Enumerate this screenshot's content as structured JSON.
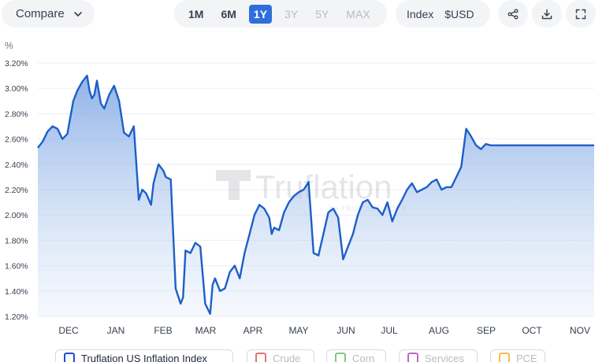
{
  "toolbar": {
    "compare_label": "Compare",
    "ranges": [
      {
        "label": "1M",
        "state": "normal"
      },
      {
        "label": "6M",
        "state": "normal"
      },
      {
        "label": "1Y",
        "state": "active"
      },
      {
        "label": "3Y",
        "state": "disabled"
      },
      {
        "label": "5Y",
        "state": "disabled"
      },
      {
        "label": "MAX",
        "state": "disabled"
      }
    ],
    "index_label": "Index",
    "currency_label": "$USD",
    "icons": [
      "share-icon",
      "download-icon",
      "fullscreen-icon"
    ]
  },
  "watermark": {
    "brand": "Truflation",
    "tagline": "by TRUF.NETWORK"
  },
  "legend": [
    {
      "label": "Truflation US Inflation Index",
      "color": "#1d4ed8",
      "checked": true
    },
    {
      "label": "Crude",
      "color": "#e57373",
      "checked": false
    },
    {
      "label": "Corn",
      "color": "#81c784",
      "checked": false
    },
    {
      "label": "Services",
      "color": "#ba68c8",
      "checked": false
    },
    {
      "label": "PCE",
      "color": "#ffb74d",
      "checked": false
    }
  ],
  "chart_data": {
    "type": "area",
    "ylabel": "%",
    "ylim": [
      1.2,
      3.2
    ],
    "yticks": [
      "1.20%",
      "1.40%",
      "1.60%",
      "1.80%",
      "2.00%",
      "2.20%",
      "2.40%",
      "2.60%",
      "2.80%",
      "3.00%",
      "3.20%"
    ],
    "xticks": [
      "DEC",
      "JAN",
      "FEB",
      "MAR",
      "APR",
      "MAY",
      "JUN",
      "JUL",
      "AUG",
      "SEP",
      "OCT",
      "NOV"
    ],
    "grid": true,
    "line_color": "#1d5fc9",
    "series": [
      {
        "name": "Truflation US Inflation Index",
        "x": [
          0,
          0.1,
          0.2,
          0.3,
          0.4,
          0.5,
          0.6,
          0.65,
          0.72,
          0.8,
          0.9,
          1.0,
          1.05,
          1.1,
          1.15,
          1.2,
          1.28,
          1.35,
          1.45,
          1.55,
          1.65,
          1.75,
          1.85,
          1.95,
          2.05,
          2.12,
          2.2,
          2.3,
          2.35,
          2.45,
          2.55,
          2.6,
          2.7,
          2.8,
          2.9,
          2.95,
          3.0,
          3.1,
          3.2,
          3.3,
          3.4,
          3.5,
          3.55,
          3.6,
          3.7,
          3.8,
          3.9,
          4.0,
          4.1,
          4.2,
          4.3,
          4.4,
          4.5,
          4.6,
          4.7,
          4.75,
          4.8,
          4.9,
          5.0,
          5.1,
          5.2,
          5.3,
          5.4,
          5.5,
          5.6,
          5.7,
          5.8,
          5.9,
          6.0,
          6.1,
          6.2,
          6.3,
          6.4,
          6.5,
          6.6,
          6.7,
          6.8,
          6.9,
          7.0,
          7.1,
          7.2,
          7.3,
          7.4,
          7.5,
          7.6,
          7.7,
          7.8,
          7.9,
          8.0,
          8.1,
          8.2,
          8.3,
          8.4,
          8.5,
          8.6,
          8.7,
          8.8,
          8.9,
          9.0,
          9.1,
          9.2,
          9.3,
          9.4,
          9.5,
          9.6,
          9.7,
          9.8,
          9.9,
          10.0,
          10.1,
          10.2,
          10.3,
          10.4,
          10.5,
          10.6,
          10.7,
          10.8,
          10.9,
          11.0,
          11.1,
          11.2,
          11.3
        ],
        "values": [
          2.53,
          2.58,
          2.66,
          2.7,
          2.68,
          2.6,
          2.64,
          2.75,
          2.9,
          2.98,
          3.05,
          3.1,
          2.98,
          2.92,
          2.95,
          3.06,
          2.88,
          2.84,
          2.95,
          3.02,
          2.9,
          2.65,
          2.62,
          2.7,
          2.12,
          2.2,
          2.17,
          2.08,
          2.25,
          2.4,
          2.35,
          2.3,
          2.28,
          1.42,
          1.3,
          1.35,
          1.72,
          1.7,
          1.78,
          1.75,
          1.3,
          1.22,
          1.45,
          1.5,
          1.4,
          1.42,
          1.55,
          1.6,
          1.5,
          1.7,
          1.85,
          2.0,
          2.08,
          2.05,
          1.98,
          1.85,
          1.9,
          1.88,
          2.02,
          2.1,
          2.15,
          2.18,
          2.2,
          2.26,
          1.7,
          1.68,
          1.85,
          2.02,
          2.05,
          1.98,
          1.65,
          1.75,
          1.85,
          2.0,
          2.1,
          2.12,
          2.06,
          2.05,
          2.0,
          2.1,
          1.95,
          2.05,
          2.12,
          2.2,
          2.25,
          2.18,
          2.2,
          2.22,
          2.26,
          2.28,
          2.2,
          2.22,
          2.22,
          2.3,
          2.38,
          2.68,
          2.62,
          2.55,
          2.52,
          2.56,
          2.55,
          2.55,
          2.55,
          2.55,
          2.55,
          2.55,
          2.55,
          2.55,
          2.55,
          2.55,
          2.55,
          2.55,
          2.55,
          2.55,
          2.55,
          2.55,
          2.55,
          2.55,
          2.55,
          2.55,
          2.55,
          2.55
        ]
      }
    ]
  }
}
